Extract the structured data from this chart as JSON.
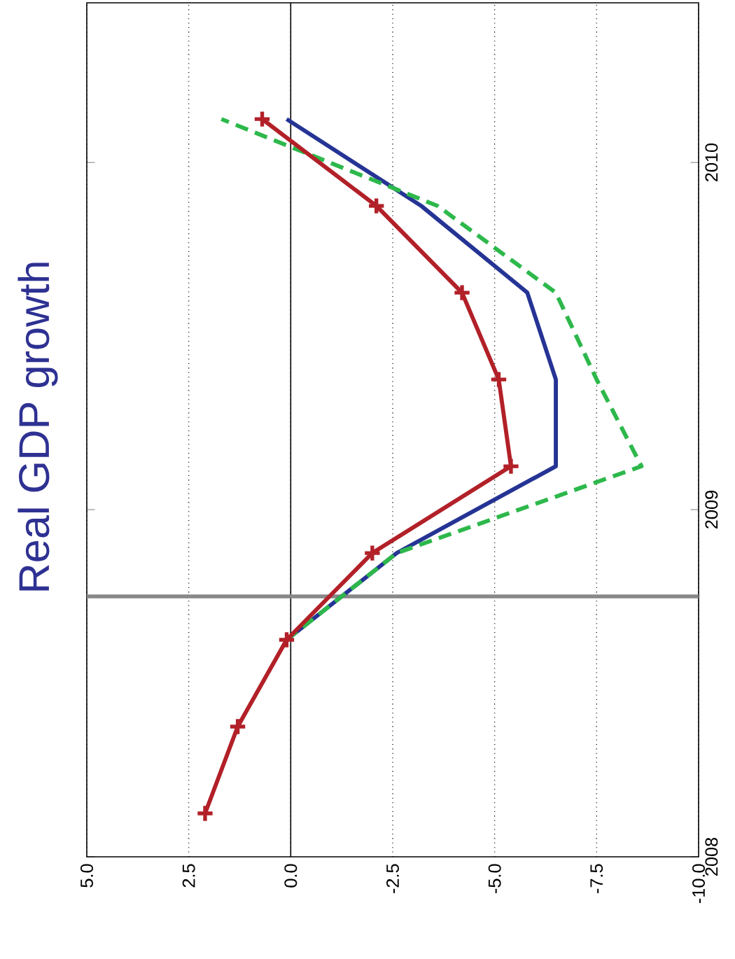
{
  "chart_data": {
    "type": "line",
    "title": "Real GDP growth",
    "xlim": [
      5,
      -10
    ],
    "ylim": [
      2008,
      2010.46
    ],
    "yticks": [
      2008,
      2009,
      2010
    ],
    "xticks": [
      {
        "value": -10,
        "label": "-10.0"
      },
      {
        "value": -7.5,
        "label": "-7.5"
      },
      {
        "value": -5,
        "label": "-5.0"
      },
      {
        "value": -2.5,
        "label": "-2.5"
      },
      {
        "value": 0,
        "label": "0.0"
      },
      {
        "value": 2.5,
        "label": "2.5"
      },
      {
        "value": 5,
        "label": "5.0"
      }
    ],
    "grid": "x",
    "ref_lines": [
      {
        "axis": "x",
        "value": 0,
        "color": "#000000"
      },
      {
        "axis": "y",
        "value": 2008.75,
        "color": "#888888"
      }
    ],
    "series": [
      {
        "color": "#253494",
        "line_style": "solid",
        "marker": "none",
        "values": [
          2008.625,
          2008.875,
          2009.125,
          2009.375,
          2009.625,
          2009.875,
          2010.125
        ],
        "x": [
          0.1,
          -2.6,
          -6.5,
          -6.5,
          -5.8,
          -3.2,
          0.1
        ]
      },
      {
        "color": "#2db84b",
        "line_style": "dashed",
        "marker": "none",
        "values": [
          2008.625,
          2008.875,
          2009.125,
          2009.375,
          2009.625,
          2009.875,
          2010.125
        ],
        "x": [
          0.1,
          -2.6,
          -8.6,
          -7.5,
          -6.5,
          -3.6,
          1.7
        ]
      },
      {
        "color": "#b22028",
        "line_style": "solid",
        "marker": "cross",
        "values": [
          2008.125,
          2008.375,
          2008.625,
          2008.875,
          2009.125,
          2009.375,
          2009.625,
          2009.875,
          2010.125
        ],
        "x": [
          2.1,
          1.3,
          0.1,
          -2.0,
          -5.4,
          -5.1,
          -4.2,
          -2.1,
          0.7
        ]
      }
    ]
  }
}
